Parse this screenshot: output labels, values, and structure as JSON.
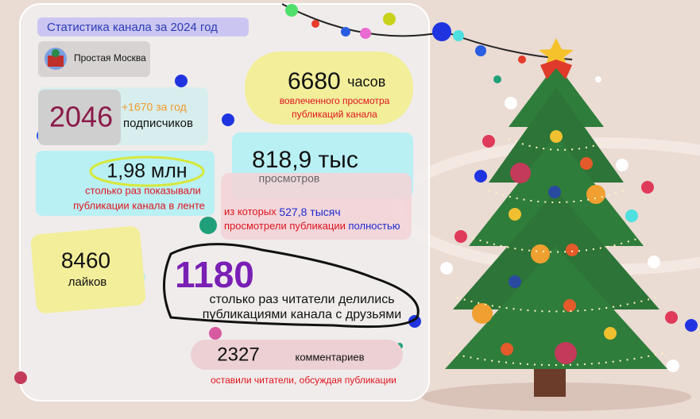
{
  "header": {
    "title": "Статистика канала за 2024 год",
    "channel": "Простая Москва"
  },
  "subscribers": {
    "value": 2046,
    "growth": "+1670 за год",
    "label": "подписчиков"
  },
  "hours": {
    "value": 6680,
    "unit": "часов",
    "caption": [
      "вовлеченного просмотра",
      "публикаций канала"
    ]
  },
  "impressions": {
    "value": "1,98 млн",
    "caption": [
      "столько раз показывали",
      "публикации канала в ленте"
    ]
  },
  "views": {
    "value": "818,9 тыс",
    "label": "просмотров",
    "full": {
      "prefix": "из которых",
      "value": "527,8 тысяч",
      "text": "просмотрели публикации",
      "suffix": "полностью"
    }
  },
  "likes": {
    "value": 8460,
    "label": "лайков"
  },
  "shares": {
    "value": 1180,
    "caption": [
      "столько раз читатели делились",
      "публикациями канала с друзьями"
    ]
  },
  "comments": {
    "value": 2327,
    "label": "комментариев",
    "caption": "оставили читатели, обсуждая публикации"
  }
}
